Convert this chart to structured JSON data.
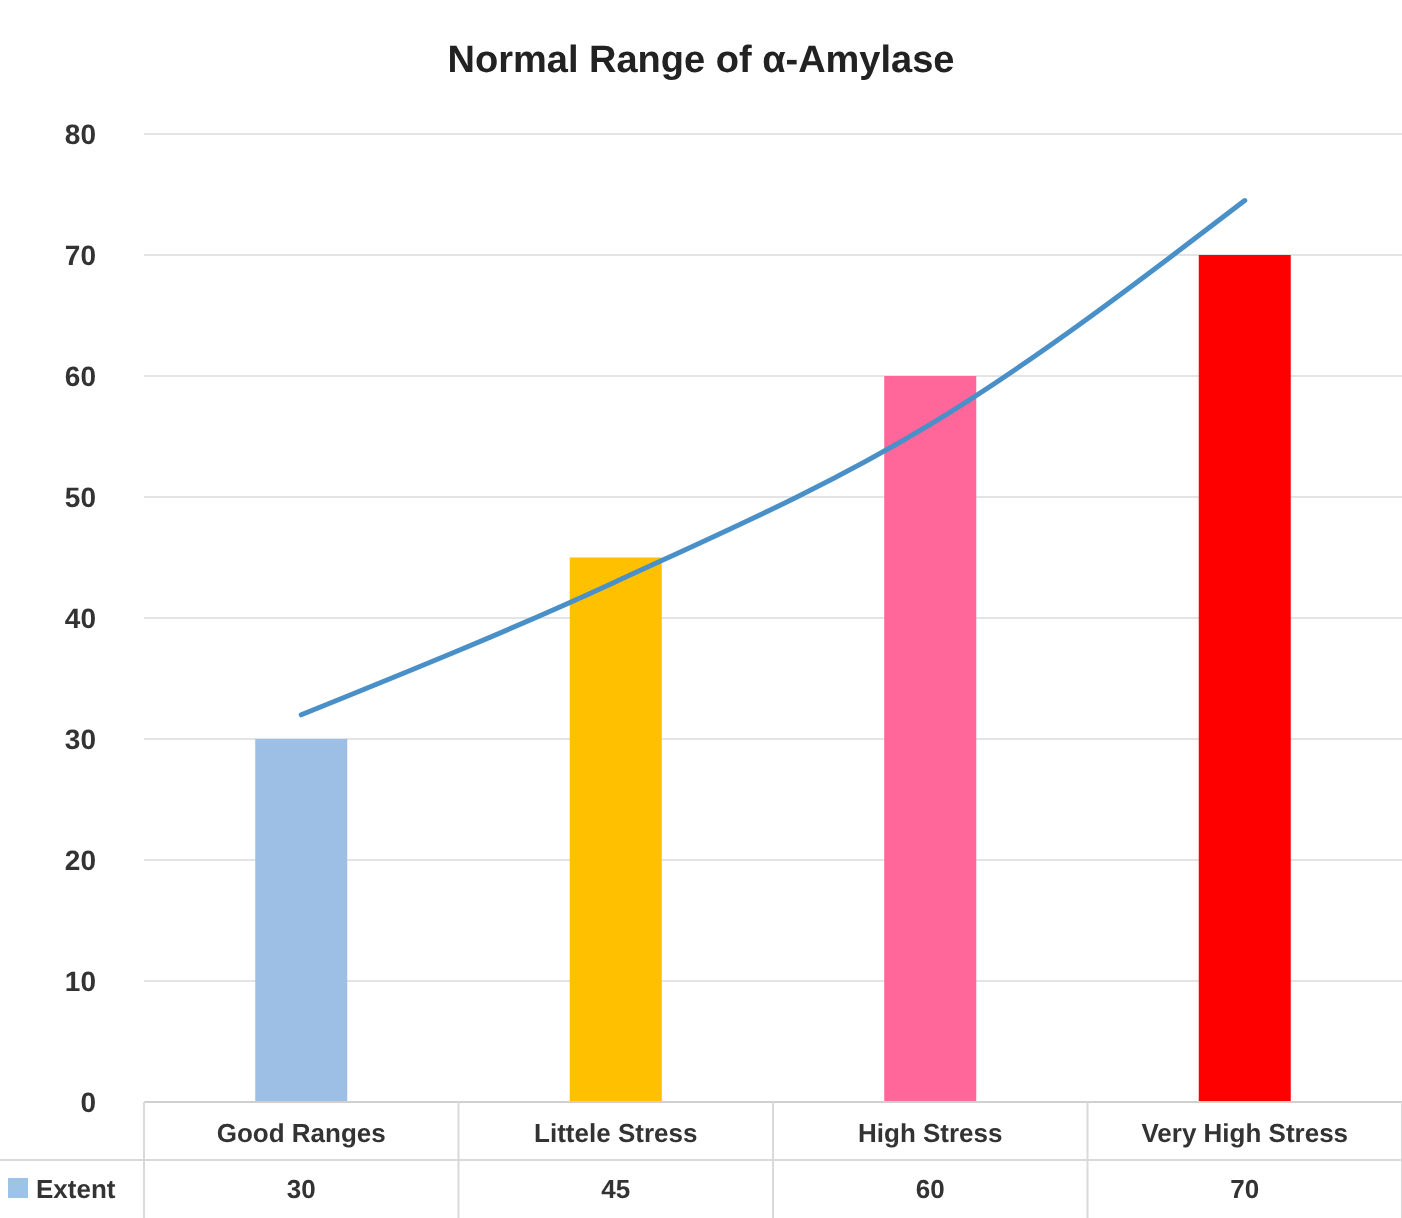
{
  "chart_data": {
    "type": "bar",
    "title": "Normal Range of α-Amylase",
    "categories": [
      "Good Ranges",
      "Littele Stress",
      "High Stress",
      "Very High Stress"
    ],
    "series": [
      {
        "name": "Extent",
        "color": "#9dc3e6",
        "colors": [
          "#9dbfe6",
          "#ffc000",
          "#ff6699",
          "#ff0000"
        ],
        "values": [
          30,
          45,
          60,
          70
        ],
        "value_labels": [
          "30",
          "45",
          "60",
          "70"
        ]
      },
      {
        "type": "line",
        "color": "#4a90c8",
        "values": [
          32,
          43,
          56,
          74.5
        ]
      }
    ],
    "ylim": [
      0,
      80
    ],
    "yticks": [
      0,
      10,
      20,
      30,
      40,
      50,
      60,
      70,
      80
    ],
    "grid": "y",
    "legend": "bottom"
  }
}
